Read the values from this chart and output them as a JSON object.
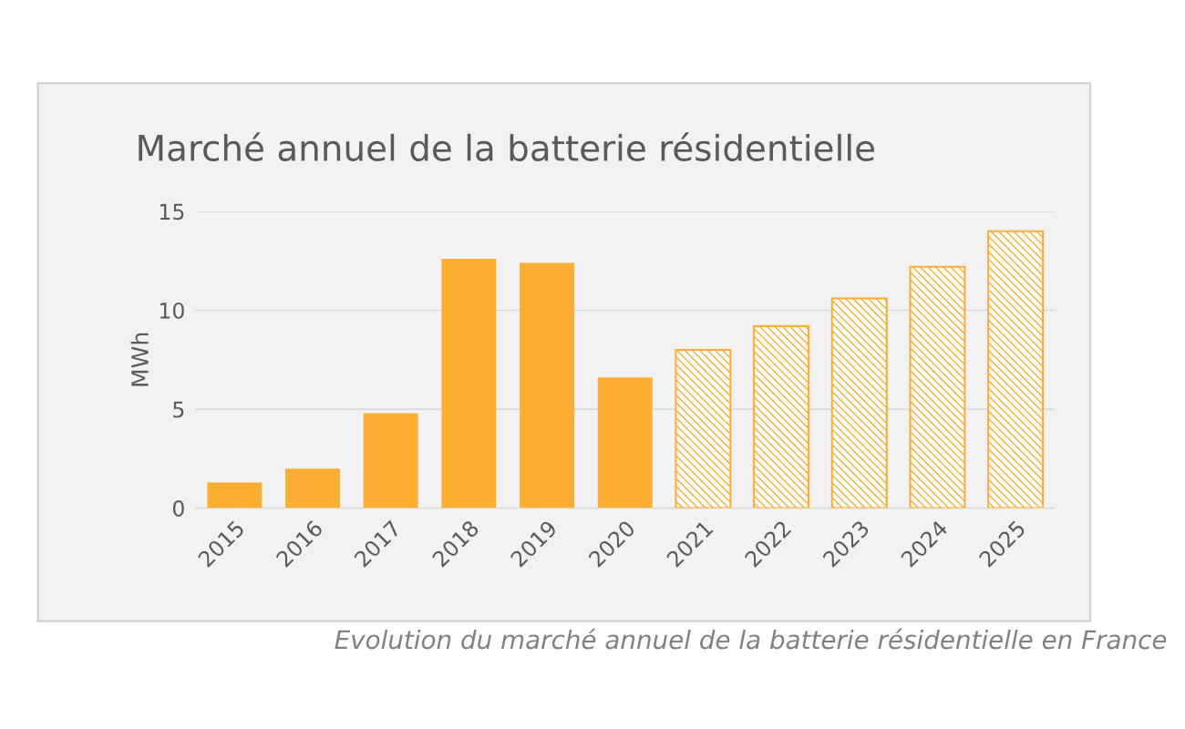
{
  "chart_data": {
    "type": "bar",
    "title": "Marché annuel de la batterie résidentielle",
    "ylabel": "MWh",
    "categories": [
      "2015",
      "2016",
      "2017",
      "2018",
      "2019",
      "2020",
      "2021",
      "2022",
      "2023",
      "2024",
      "2025"
    ],
    "series": [
      {
        "color": "#fbae32",
        "values": [
          1.3,
          2.0,
          4.8,
          12.6,
          12.4,
          6.6,
          null,
          null,
          null,
          null,
          null
        ]
      },
      {
        "color": "#fbae32",
        "values": [
          null,
          null,
          null,
          null,
          null,
          null,
          8.0,
          9.2,
          10.6,
          12.2,
          14.0
        ]
      }
    ],
    "stacked": true,
    "ylim": [
      0,
      15
    ],
    "yticks": [
      0,
      5,
      10,
      15
    ],
    "grid": "y",
    "legend": false,
    "annotations": [
      "Evolution du marché annuel de la batterie résidentielle en France"
    ]
  }
}
